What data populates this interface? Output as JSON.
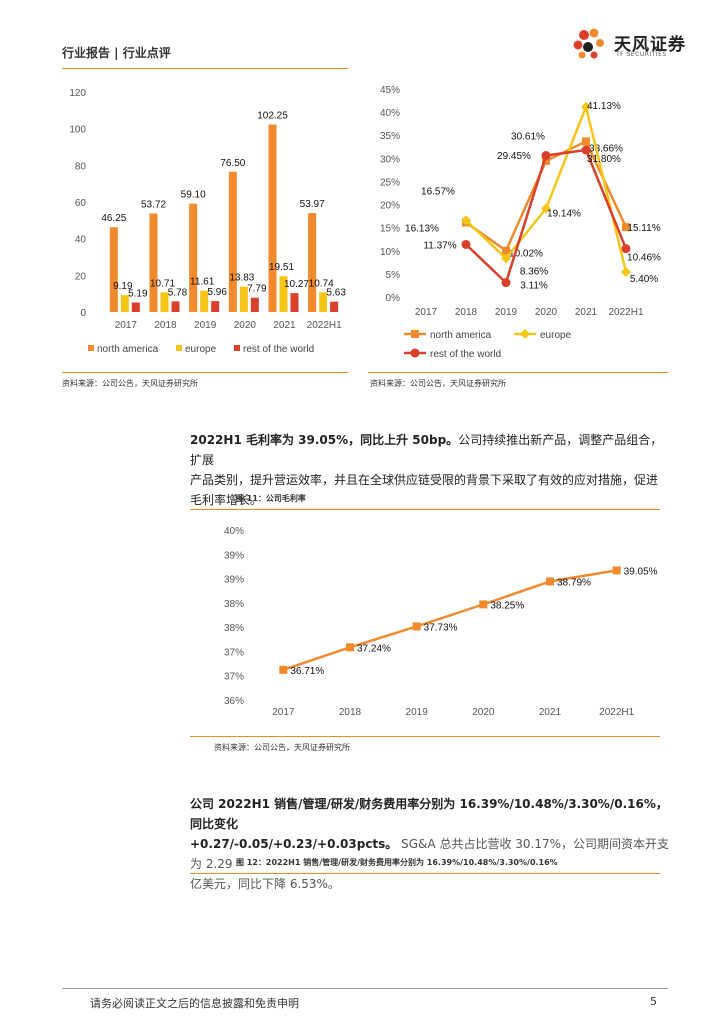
{
  "header": {
    "section": "行业报告 | 行业点评",
    "logo_cn": "天风证券",
    "logo_en": "TF SECURITIES"
  },
  "colors": {
    "orange": "#f08a2c",
    "yellow": "#f5c518",
    "red": "#d9402b"
  },
  "chart_data": [
    {
      "type": "bar",
      "title": "",
      "categories": [
        "2017",
        "2018",
        "2019",
        "2020",
        "2021",
        "2022H1"
      ],
      "ylim": [
        0,
        120
      ],
      "yticks": [
        "0",
        "20",
        "40",
        "60",
        "80",
        "100",
        "120"
      ],
      "series": [
        {
          "name": "north america",
          "color": "#f08a2c",
          "values": [
            46.25,
            53.72,
            59.1,
            76.5,
            102.25,
            53.97
          ],
          "labels": [
            "46.25",
            "53.72",
            "59.10",
            "76.50",
            "102.25",
            "53.97"
          ]
        },
        {
          "name": "europe",
          "color": "#f5c518",
          "values": [
            9.19,
            10.71,
            11.61,
            13.83,
            19.51,
            10.74
          ],
          "labels": [
            "9.19",
            "10.71",
            "11.61",
            "13.83",
            "19.51",
            "10.74"
          ]
        },
        {
          "name": "rest of the world",
          "color": "#d9402b",
          "values": [
            5.19,
            5.78,
            5.96,
            7.79,
            10.27,
            5.63
          ],
          "labels": [
            "5.19",
            "5.78",
            "5.96",
            "7.79",
            "10.27",
            "5.63"
          ]
        }
      ],
      "legend": "bottom",
      "source": "资料来源：公司公告，天风证券研究所"
    },
    {
      "type": "line",
      "categories": [
        "2017",
        "2018",
        "2019",
        "2020",
        "2021",
        "2022H1"
      ],
      "ylim": [
        0,
        45
      ],
      "yticks": [
        "0%",
        "5%",
        "10%",
        "15%",
        "20%",
        "25%",
        "30%",
        "35%",
        "40%",
        "45%"
      ],
      "series": [
        {
          "name": "north america",
          "color": "#f08a2c",
          "marker": "square",
          "values": [
            null,
            16.13,
            10.02,
            29.45,
            33.66,
            15.11
          ],
          "labels": [
            "",
            "16.13%",
            "10.02%",
            "29.45%",
            "33.66%",
            "15.11%"
          ]
        },
        {
          "name": "europe",
          "color": "#f5c518",
          "marker": "diamond",
          "values": [
            null,
            16.57,
            8.36,
            19.14,
            41.13,
            5.4
          ],
          "labels": [
            "",
            "16.57%",
            "8.36%",
            "19.14%",
            "41.13%",
            "5.40%"
          ]
        },
        {
          "name": "rest of the world",
          "color": "#d9402b",
          "marker": "circle",
          "values": [
            null,
            11.37,
            3.11,
            30.61,
            31.8,
            10.46
          ],
          "labels": [
            "",
            "11.37%",
            "3.11%",
            "30.61%",
            "31.80%",
            "10.46%"
          ]
        }
      ],
      "legend": "bottom",
      "source": "资料来源：公司公告，天风证券研究所"
    },
    {
      "type": "line",
      "title": "图 11：公司毛利率",
      "categories": [
        "2017",
        "2018",
        "2019",
        "2020",
        "2021",
        "2022H1"
      ],
      "ylim": [
        36,
        40
      ],
      "yticks": [
        "36%",
        "37%",
        "37%",
        "38%",
        "38%",
        "39%",
        "39%",
        "40%"
      ],
      "series": [
        {
          "name": "毛利率",
          "color": "#f08a2c",
          "values": [
            36.71,
            37.24,
            37.73,
            38.25,
            38.79,
            39.05
          ],
          "labels": [
            "36.71%",
            "37.24%",
            "37.73%",
            "38.25%",
            "38.79%",
            "39.05%"
          ]
        }
      ],
      "source": "资料来源：公司公告，天风证券研究所"
    }
  ],
  "para1": {
    "bold": "2022H1 毛利率为 39.05%，同比上升 50bp。",
    "line1_rest": "公司持续推出新产品，调整产品组合，扩展",
    "line2": "产品类别，提升营运效率，并且在全球供应链受限的背景下采取了有效的应对措施，促进",
    "line3": "毛利率增长。"
  },
  "para2": {
    "line1": "公司 2022H1 销售/管理/研发/财务费用率分别为 16.39%/10.48%/3.30%/0.16%，同比变化",
    "line2_bold": "+0.27/-0.05/+0.23/+0.03pcts。",
    "line2_rest": "SG&A 总共占比营收 30.17%，公司期间资本开支为 2.29",
    "line3": "亿美元，同比下降 6.53%。"
  },
  "fig12_title": "图 12：2022H1 销售/管理/研发/财务费用率分别为 16.39%/10.48%/3.30%/0.16%",
  "footer": {
    "disclaimer": "请务必阅读正文之后的信息披露和免责申明",
    "page": "5"
  }
}
